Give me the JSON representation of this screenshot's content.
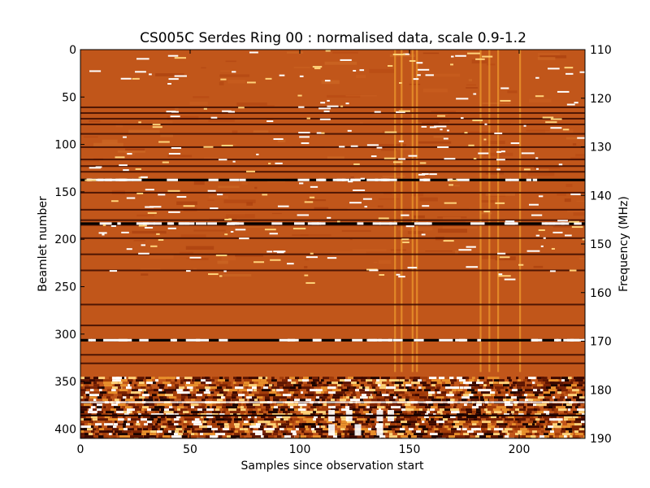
{
  "chart_data": {
    "type": "heatmap",
    "title": "CS005C Serdes Ring 00 : normalised data, scale 0.9-1.2",
    "xlabel": "Samples since observation start",
    "ylabel": "Beamlet number",
    "y2label": "Frequency (MHz)",
    "xlim": [
      0,
      230
    ],
    "ylim": [
      410,
      0
    ],
    "y2lim": [
      190,
      110
    ],
    "colorscale": "afmhot",
    "value_range": [
      0.9,
      1.2
    ],
    "background_color": "#c1561a",
    "x_ticks": [
      0,
      50,
      100,
      150,
      200
    ],
    "y_ticks": [
      0,
      50,
      100,
      150,
      200,
      250,
      300,
      350,
      400
    ],
    "y2_ticks": [
      110,
      120,
      130,
      140,
      150,
      160,
      170,
      180,
      190
    ],
    "dark_rows": [
      60,
      66,
      72,
      78,
      88,
      102,
      115,
      122,
      128,
      137,
      150,
      168,
      179,
      184,
      198,
      215,
      232,
      268,
      290,
      306,
      321,
      330
    ],
    "bright_columns": [
      143,
      146,
      151,
      153,
      182,
      186,
      190,
      200
    ],
    "strong_band_beamlets": [
      345,
      410
    ]
  }
}
